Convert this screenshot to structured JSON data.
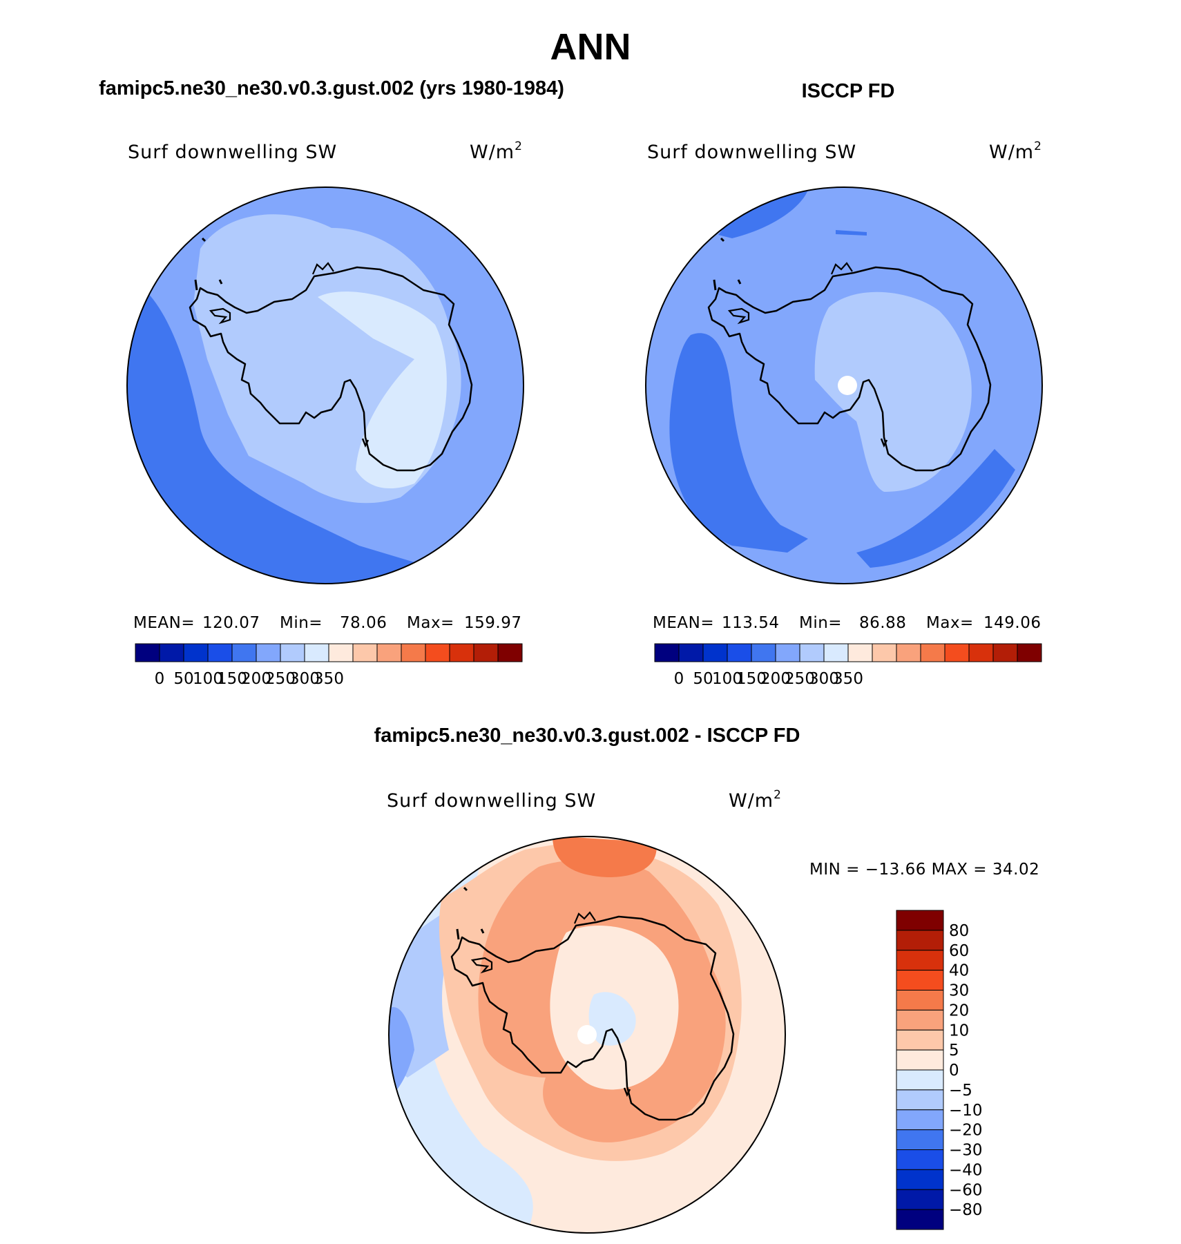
{
  "figure_title": "ANN",
  "chart_data": [
    {
      "type": "heatmap",
      "panel": "model",
      "title": "famipc5.ne30_ne30.v0.3.gust.002 (yrs 1980-1984)",
      "variable": "Surf downwelling SW",
      "units_base": "W/m",
      "units_exp": "2",
      "projection": "south-polar stereographic",
      "stats": {
        "mean_label": "MEAN=",
        "mean": "120.07",
        "min_label": "Min=",
        "min": "78.06",
        "max_label": "Max=",
        "max": "159.97"
      },
      "levels": [
        "0",
        "50",
        "100",
        "150",
        "200",
        "250",
        "300",
        "350"
      ],
      "colors": [
        "#00007f",
        "#0019a8",
        "#0033cc",
        "#1a4ee8",
        "#4076f0",
        "#82a7fc",
        "#b1cbfd",
        "#d9eafe",
        "#feeadd",
        "#fdc8aa",
        "#f9a27c",
        "#f57a4a",
        "#f44d1e",
        "#d8310c",
        "#b31e07",
        "#7f0000"
      ],
      "regions": [
        "#82a7fc",
        "#4076f0",
        "#b1cbfd",
        "#d9eafe"
      ]
    },
    {
      "type": "heatmap",
      "panel": "obs",
      "title": "ISCCP FD",
      "variable": "Surf downwelling SW",
      "units_base": "W/m",
      "units_exp": "2",
      "projection": "south-polar stereographic",
      "stats": {
        "mean_label": "MEAN=",
        "mean": "113.54",
        "min_label": "Min=",
        "min": "86.88",
        "max_label": "Max=",
        "max": "149.06"
      },
      "levels": [
        "0",
        "50",
        "100",
        "150",
        "200",
        "250",
        "300",
        "350"
      ],
      "colors": [
        "#00007f",
        "#0019a8",
        "#0033cc",
        "#1a4ee8",
        "#4076f0",
        "#82a7fc",
        "#b1cbfd",
        "#d9eafe",
        "#feeadd",
        "#fdc8aa",
        "#f9a27c",
        "#f57a4a",
        "#f44d1e",
        "#d8310c",
        "#b31e07",
        "#7f0000"
      ],
      "regions": [
        "#82a7fc",
        "#4076f0",
        "#b1cbfd"
      ]
    },
    {
      "type": "heatmap",
      "panel": "difference",
      "title": "famipc5.ne30_ne30.v0.3.gust.002 - ISCCP FD",
      "variable": "Surf downwelling SW",
      "units_base": "W/m",
      "units_exp": "2",
      "projection": "south-polar stereographic",
      "stats": {
        "text": "MIN = −13.66 MAX =  34.02",
        "min": "−13.66",
        "max": "34.02"
      },
      "levels": [
        "80",
        "60",
        "40",
        "30",
        "20",
        "10",
        "5",
        "0",
        "−5",
        "−10",
        "−20",
        "−30",
        "−40",
        "−60",
        "−80"
      ],
      "colors": [
        "#7f0000",
        "#b31e07",
        "#d8310c",
        "#f44d1e",
        "#f57a4a",
        "#f9a27c",
        "#fdc8aa",
        "#feeadd",
        "#d9eafe",
        "#b1cbfd",
        "#82a7fc",
        "#4076f0",
        "#1a4ee8",
        "#0033cc",
        "#0019a8",
        "#00007f"
      ],
      "regions": [
        "#feeadd",
        "#d9eafe",
        "#b1cbfd",
        "#82a7fc",
        "#f9a27c",
        "#f57a4a",
        "#fdc8aa"
      ]
    }
  ]
}
